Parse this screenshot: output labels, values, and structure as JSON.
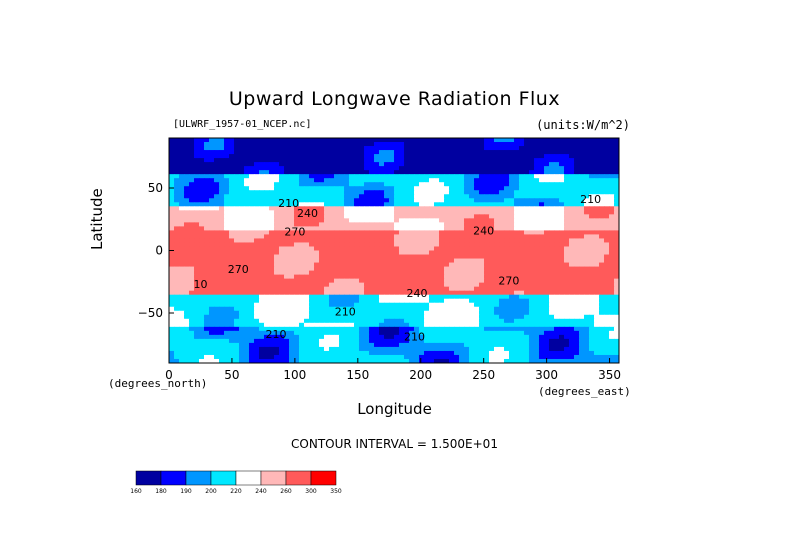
{
  "chart_data": {
    "type": "heatmap",
    "title": "Upward Longwave Radiation Flux",
    "subtitle": "[ULWRF_1957-01_NCEP.nc]",
    "units_label": "(units:W/m^2)",
    "xlabel": "Longitude",
    "ylabel": "Latitude",
    "x_unit_label": "(degrees_east)",
    "y_unit_label": "(degrees_north)",
    "xlim": [
      0,
      357.5
    ],
    "ylim": [
      -90,
      90
    ],
    "x_ticks": [
      0,
      50,
      100,
      150,
      200,
      250,
      300,
      350
    ],
    "y_ticks": [
      -50,
      0,
      50
    ],
    "y_tick_labels": [
      "−50",
      "0",
      "50"
    ],
    "contour_interval_text": "CONTOUR INTERVAL = 1.500E+01",
    "colorbar": {
      "levels": [
        160,
        180,
        190,
        200,
        220,
        240,
        260,
        300,
        350
      ],
      "level_labels": [
        "160",
        "180",
        "190",
        "200",
        "220",
        "240",
        "260",
        "300",
        "350"
      ],
      "colors": [
        "#0000a0",
        "#0000ff",
        "#0096ff",
        "#00e8ff",
        "#ffffff",
        "#ffb8b8",
        "#ff5a5a",
        "#ff0000"
      ]
    },
    "contour_labels": [
      {
        "text": "210",
        "lon": 95,
        "lat": 35
      },
      {
        "text": "240",
        "lon": 110,
        "lat": 27
      },
      {
        "text": "270",
        "lon": 100,
        "lat": 12
      },
      {
        "text": "270",
        "lon": 55,
        "lat": -18
      },
      {
        "text": "210",
        "lon": 335,
        "lat": 38
      },
      {
        "text": "240",
        "lon": 250,
        "lat": 13
      },
      {
        "text": "240",
        "lon": 197,
        "lat": -37
      },
      {
        "text": "270",
        "lon": 270,
        "lat": -27
      },
      {
        "text": "210",
        "lon": 140,
        "lat": -52
      },
      {
        "text": "210",
        "lon": 85,
        "lat": -70
      },
      {
        "text": "210",
        "lon": 195,
        "lat": -72
      },
      {
        "text": "10",
        "lon": 25,
        "lat": -30
      }
    ],
    "region_values": [
      {
        "region": "arctic",
        "lat": [
          60,
          90
        ],
        "value": 170
      },
      {
        "region": "north-midlat",
        "lat": [
          35,
          60
        ],
        "value": 205
      },
      {
        "region": "north-subtropics",
        "lat": [
          15,
          35
        ],
        "value": 245
      },
      {
        "region": "tropics",
        "lat": [
          -35,
          15
        ],
        "value": 270
      },
      {
        "region": "south-midlat",
        "lat": [
          -60,
          -35
        ],
        "value": 215
      },
      {
        "region": "antarctic",
        "lat": [
          -90,
          -60
        ],
        "value": 200
      }
    ]
  }
}
